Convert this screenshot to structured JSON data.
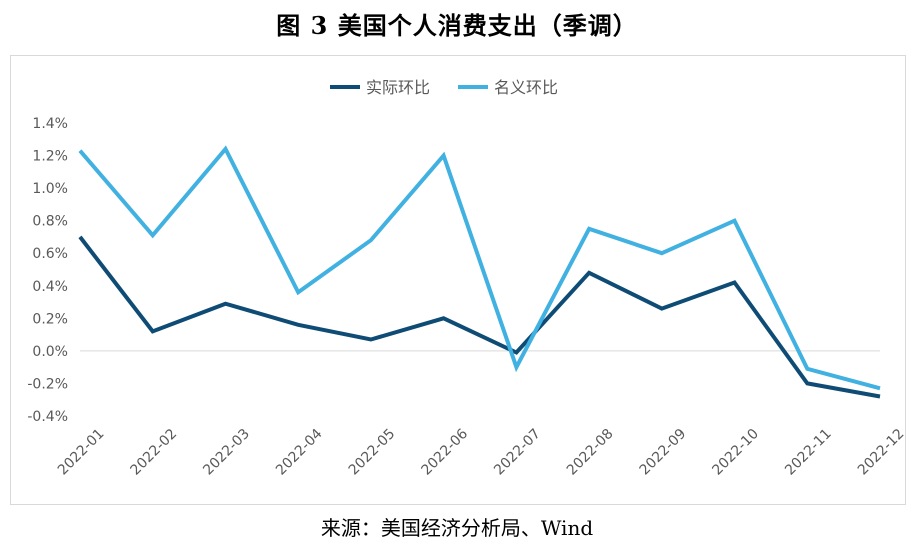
{
  "title": "图 3 美国个人消费支出（季调）",
  "source": "来源：美国经济分析局、Wind",
  "chart_data": {
    "type": "line",
    "categories": [
      "2022-01",
      "2022-02",
      "2022-03",
      "2022-04",
      "2022-05",
      "2022-06",
      "2022-07",
      "2022-08",
      "2022-09",
      "2022-10",
      "2022-11",
      "2022-12"
    ],
    "series": [
      {
        "name": "实际环比",
        "color": "#0f4c75",
        "values": [
          0.007,
          0.0012,
          0.0029,
          0.0016,
          0.0007,
          0.002,
          -0.0001,
          0.0048,
          0.0026,
          0.0042,
          -0.002,
          -0.0028
        ]
      },
      {
        "name": "名义环比",
        "color": "#41b1e1",
        "values": [
          0.0123,
          0.0071,
          0.0124,
          0.0036,
          0.0068,
          0.012,
          -0.001,
          0.0075,
          0.006,
          0.008,
          -0.0011,
          -0.0023
        ]
      }
    ],
    "ylim": [
      -0.004,
      0.014
    ],
    "yticks": [
      0.014,
      0.012,
      0.01,
      0.008,
      0.006,
      0.004,
      0.002,
      0.0,
      -0.002,
      -0.004
    ],
    "ytick_labels": [
      "1.4%",
      "1.2%",
      "1.0%",
      "0.8%",
      "0.6%",
      "0.4%",
      "0.2%",
      "0.0%",
      "-0.2%",
      "-0.4%"
    ],
    "zero_line": true,
    "grid": false,
    "legend": "top-center"
  }
}
